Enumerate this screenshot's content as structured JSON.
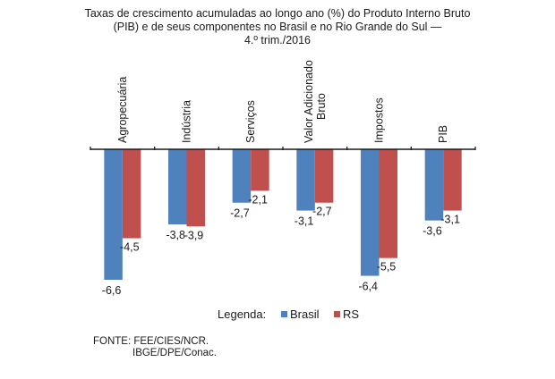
{
  "chart_data": {
    "type": "bar",
    "title": "Taxas de crescimento acumuladas ao longo ano (%) do Produto Interno Bruto (PIB) e de seus componentes no Brasil e no Rio Grande do Sul — 4.º trim./2016",
    "title_lines": [
      "Taxas de crescimento acumuladas ao longo ano (%) do Produto Interno Bruto",
      "(PIB) e de seus componentes no Brasil e no Rio Grande do Sul —",
      "4.º trim./2016"
    ],
    "categories": [
      "Agropecuária",
      "Indústria",
      "Serviços",
      "Valor Adicionado Bruto",
      "Impostos",
      "PIB"
    ],
    "category_lines": [
      [
        "Agropecuária"
      ],
      [
        "Indústria"
      ],
      [
        "Serviços"
      ],
      [
        "Valor Adicionado",
        "Bruto"
      ],
      [
        "Impostos"
      ],
      [
        "PIB"
      ]
    ],
    "series": [
      {
        "name": "Brasil",
        "color": "#4f81bd",
        "values": [
          -6.6,
          -3.8,
          -2.7,
          -3.1,
          -6.4,
          -3.6
        ],
        "labels": [
          "-6,6",
          "-3,8",
          "-2,7",
          "-3,1",
          "-6,4",
          "-3,6"
        ]
      },
      {
        "name": "RS",
        "color": "#c0504d",
        "values": [
          -4.5,
          -3.9,
          -2.1,
          -2.7,
          -5.5,
          -3.1
        ],
        "labels": [
          "-4,5",
          "-3,9",
          "-2,1",
          "-2,7",
          "-5,5",
          "-3,1"
        ]
      }
    ],
    "ylim": [
      -6.6,
      0
    ],
    "grid": false,
    "xlabel": "",
    "ylabel": "",
    "legend_title": "Legenda:",
    "legend_position": "bottom",
    "source_lines": [
      "FONTE: FEE/CIES/NCR.",
      "IBGE/DPE/Conac."
    ]
  }
}
